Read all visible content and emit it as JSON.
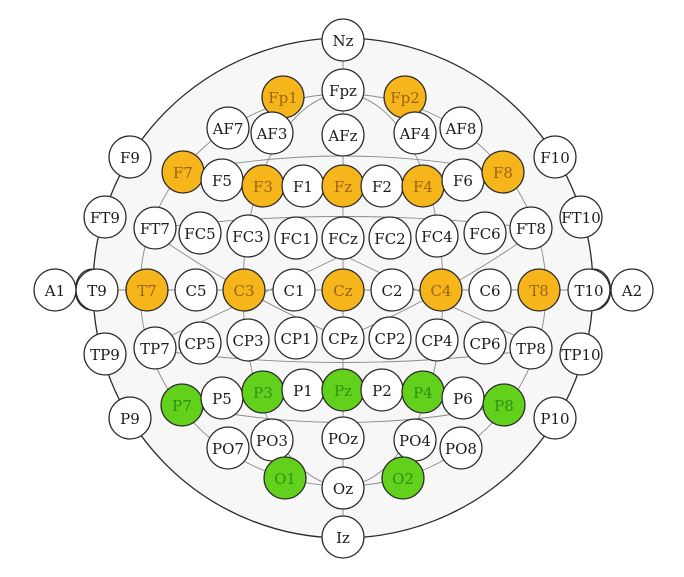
{
  "colors": {
    "frontal_temporal": "#f5b51b",
    "parietal_occipital": "#62d11b",
    "default": "#ffffff",
    "label_on_orange": "#9a6410",
    "label_on_green": "#2f8f12",
    "label_default": "#1a1a1a"
  },
  "electrodes": [
    {
      "id": "Nz",
      "group": "default"
    },
    {
      "id": "Fpz",
      "group": "default"
    },
    {
      "id": "Fp1",
      "group": "frontal_temporal"
    },
    {
      "id": "Fp2",
      "group": "frontal_temporal"
    },
    {
      "id": "AF7",
      "group": "default"
    },
    {
      "id": "AF3",
      "group": "default"
    },
    {
      "id": "AFz",
      "group": "default"
    },
    {
      "id": "AF4",
      "group": "default"
    },
    {
      "id": "AF8",
      "group": "default"
    },
    {
      "id": "F9",
      "group": "default"
    },
    {
      "id": "F7",
      "group": "frontal_temporal"
    },
    {
      "id": "F5",
      "group": "default"
    },
    {
      "id": "F3",
      "group": "frontal_temporal"
    },
    {
      "id": "F1",
      "group": "default"
    },
    {
      "id": "Fz",
      "group": "frontal_temporal"
    },
    {
      "id": "F2",
      "group": "default"
    },
    {
      "id": "F4",
      "group": "frontal_temporal"
    },
    {
      "id": "F6",
      "group": "default"
    },
    {
      "id": "F8",
      "group": "frontal_temporal"
    },
    {
      "id": "F10",
      "group": "default"
    },
    {
      "id": "FT9",
      "group": "default"
    },
    {
      "id": "FT7",
      "group": "default"
    },
    {
      "id": "FC5",
      "group": "default"
    },
    {
      "id": "FC3",
      "group": "default"
    },
    {
      "id": "FC1",
      "group": "default"
    },
    {
      "id": "FCz",
      "group": "default"
    },
    {
      "id": "FC2",
      "group": "default"
    },
    {
      "id": "FC4",
      "group": "default"
    },
    {
      "id": "FC6",
      "group": "default"
    },
    {
      "id": "FT8",
      "group": "default"
    },
    {
      "id": "FT10",
      "group": "default"
    },
    {
      "id": "A1",
      "group": "default"
    },
    {
      "id": "T9",
      "group": "default"
    },
    {
      "id": "T7",
      "group": "frontal_temporal"
    },
    {
      "id": "C5",
      "group": "default"
    },
    {
      "id": "C3",
      "group": "frontal_temporal"
    },
    {
      "id": "C1",
      "group": "default"
    },
    {
      "id": "Cz",
      "group": "frontal_temporal"
    },
    {
      "id": "C2",
      "group": "default"
    },
    {
      "id": "C4",
      "group": "frontal_temporal"
    },
    {
      "id": "C6",
      "group": "default"
    },
    {
      "id": "T8",
      "group": "frontal_temporal"
    },
    {
      "id": "T10",
      "group": "default"
    },
    {
      "id": "A2",
      "group": "default"
    },
    {
      "id": "TP9",
      "group": "default"
    },
    {
      "id": "TP7",
      "group": "default"
    },
    {
      "id": "CP5",
      "group": "default"
    },
    {
      "id": "CP3",
      "group": "default"
    },
    {
      "id": "CP1",
      "group": "default"
    },
    {
      "id": "CPz",
      "group": "default"
    },
    {
      "id": "CP2",
      "group": "default"
    },
    {
      "id": "CP4",
      "group": "default"
    },
    {
      "id": "CP6",
      "group": "default"
    },
    {
      "id": "TP8",
      "group": "default"
    },
    {
      "id": "TP10",
      "group": "default"
    },
    {
      "id": "P9",
      "group": "default"
    },
    {
      "id": "P7",
      "group": "parietal_occipital"
    },
    {
      "id": "P5",
      "group": "default"
    },
    {
      "id": "P3",
      "group": "parietal_occipital"
    },
    {
      "id": "P1",
      "group": "default"
    },
    {
      "id": "Pz",
      "group": "parietal_occipital"
    },
    {
      "id": "P2",
      "group": "default"
    },
    {
      "id": "P4",
      "group": "parietal_occipital"
    },
    {
      "id": "P6",
      "group": "default"
    },
    {
      "id": "P8",
      "group": "parietal_occipital"
    },
    {
      "id": "P10",
      "group": "default"
    },
    {
      "id": "PO7",
      "group": "default"
    },
    {
      "id": "PO3",
      "group": "default"
    },
    {
      "id": "POz",
      "group": "default"
    },
    {
      "id": "PO4",
      "group": "default"
    },
    {
      "id": "PO8",
      "group": "default"
    },
    {
      "id": "O1",
      "group": "parietal_occipital"
    },
    {
      "id": "Oz",
      "group": "default"
    },
    {
      "id": "O2",
      "group": "parietal_occipital"
    },
    {
      "id": "Iz",
      "group": "default"
    }
  ]
}
